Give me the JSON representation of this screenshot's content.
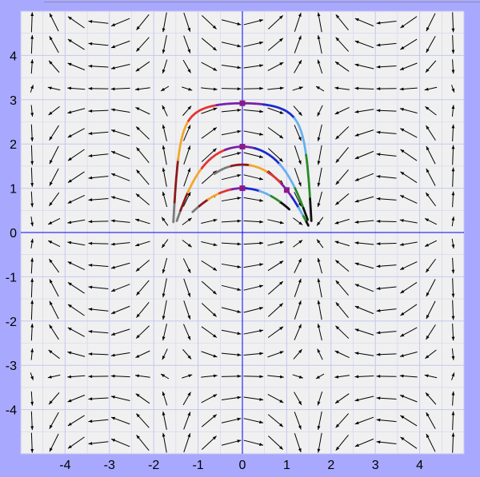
{
  "chart_data": {
    "type": "vector-field",
    "title": "",
    "xlabel": "",
    "ylabel": "",
    "xlim": [
      -5,
      5
    ],
    "ylim": [
      -5,
      5
    ],
    "x_ticks": [
      "-4",
      "-3",
      "-2",
      "-1",
      "0",
      "1",
      "2",
      "3",
      "4"
    ],
    "y_ticks": [
      "4",
      "3",
      "2",
      "1",
      "0",
      "-1",
      "-2",
      "-3",
      "-4"
    ],
    "grid": true,
    "field": "dx/dt = cos(x), dy/dt = -sin(x)·sin(y)",
    "trajectories": [
      {
        "start": [
          0,
          2.92
        ],
        "t_range": [
          -5.0,
          4.9
        ]
      },
      {
        "start": [
          0,
          1.94
        ],
        "t_range": [
          -3.1,
          3.0
        ]
      },
      {
        "start": [
          1,
          0.96
        ],
        "t_range": [
          -1.9,
          1.95
        ]
      },
      {
        "start": [
          0,
          1.0
        ],
        "t_range": [
          -1.47,
          1.33
        ]
      }
    ],
    "markers": [
      [
        0,
        2.92
      ],
      [
        0,
        1.94
      ],
      [
        1,
        0.96
      ],
      [
        0,
        1.0
      ]
    ],
    "colors": {
      "background": "#a8a8ff",
      "plot_bg": "#f0f0f0",
      "grid": "#c4c8f0",
      "axis": "#0000ff",
      "arrow": "#000000",
      "marker": "#8b1a89",
      "gradient": [
        "#7a7a7a",
        "#8b1a1a",
        "#f0a830",
        "#e53333",
        "#7722aa",
        "#1a2ad0",
        "#66b0f0",
        "#2a8a2a",
        "#111111"
      ]
    }
  }
}
